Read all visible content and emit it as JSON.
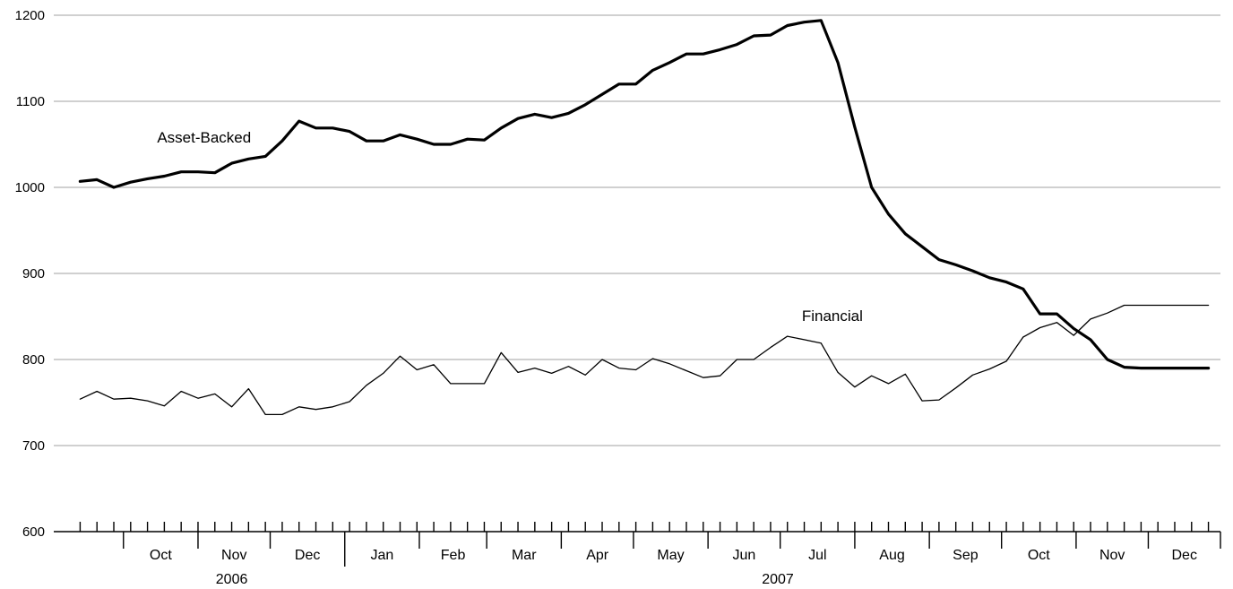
{
  "chart_data": {
    "type": "line",
    "ylim": [
      600,
      1200
    ],
    "yticks": [
      600,
      700,
      800,
      900,
      1000,
      1100,
      1200
    ],
    "grid": "horizontal",
    "x_start": "2006-09-08",
    "x_end": "2007-12-31",
    "month_labels": [
      {
        "label": "Oct",
        "start": "2006-10-01",
        "end": "2006-11-01"
      },
      {
        "label": "Nov",
        "start": "2006-11-01",
        "end": "2006-12-01"
      },
      {
        "label": "Dec",
        "start": "2006-12-01",
        "end": "2007-01-01"
      },
      {
        "label": "Jan",
        "start": "2007-01-01",
        "end": "2007-02-01"
      },
      {
        "label": "Feb",
        "start": "2007-02-01",
        "end": "2007-03-01"
      },
      {
        "label": "Mar",
        "start": "2007-03-01",
        "end": "2007-04-01"
      },
      {
        "label": "Apr",
        "start": "2007-04-01",
        "end": "2007-05-01"
      },
      {
        "label": "May",
        "start": "2007-05-01",
        "end": "2007-06-01"
      },
      {
        "label": "Jun",
        "start": "2007-06-01",
        "end": "2007-07-01"
      },
      {
        "label": "Jul",
        "start": "2007-07-01",
        "end": "2007-08-01"
      },
      {
        "label": "Aug",
        "start": "2007-08-01",
        "end": "2007-09-01"
      },
      {
        "label": "Sep",
        "start": "2007-09-01",
        "end": "2007-10-01"
      },
      {
        "label": "Oct",
        "start": "2007-10-01",
        "end": "2007-11-01"
      },
      {
        "label": "Nov",
        "start": "2007-11-01",
        "end": "2007-12-01"
      },
      {
        "label": "Dec",
        "start": "2007-12-01",
        "end": "2007-12-31"
      }
    ],
    "year_labels": [
      {
        "label": "2006",
        "center": "2006-11-15"
      },
      {
        "label": "2007",
        "center": "2007-06-30"
      }
    ],
    "x": [
      "2006-09-13",
      "2006-09-20",
      "2006-09-27",
      "2006-10-04",
      "2006-10-11",
      "2006-10-18",
      "2006-10-25",
      "2006-11-01",
      "2006-11-08",
      "2006-11-15",
      "2006-11-22",
      "2006-11-29",
      "2006-12-06",
      "2006-12-13",
      "2006-12-20",
      "2006-12-27",
      "2007-01-03",
      "2007-01-10",
      "2007-01-17",
      "2007-01-24",
      "2007-01-31",
      "2007-02-07",
      "2007-02-14",
      "2007-02-21",
      "2007-02-28",
      "2007-03-07",
      "2007-03-14",
      "2007-03-21",
      "2007-03-28",
      "2007-04-04",
      "2007-04-11",
      "2007-04-18",
      "2007-04-25",
      "2007-05-02",
      "2007-05-09",
      "2007-05-16",
      "2007-05-23",
      "2007-05-30",
      "2007-06-06",
      "2007-06-13",
      "2007-06-20",
      "2007-06-27",
      "2007-07-04",
      "2007-07-11",
      "2007-07-18",
      "2007-07-25",
      "2007-08-01",
      "2007-08-08",
      "2007-08-15",
      "2007-08-22",
      "2007-08-29",
      "2007-09-05",
      "2007-09-12",
      "2007-09-19",
      "2007-09-26",
      "2007-10-03",
      "2007-10-10",
      "2007-10-17",
      "2007-10-24",
      "2007-10-31",
      "2007-11-07",
      "2007-11-14",
      "2007-11-21",
      "2007-11-28",
      "2007-12-05",
      "2007-12-12",
      "2007-12-19",
      "2007-12-26"
    ],
    "series": [
      {
        "name": "Asset-Backed",
        "label_at": {
          "x": "2006-10-15",
          "y": 1052
        },
        "values": [
          1007,
          1009,
          1000,
          1006,
          1010,
          1013,
          1018,
          1018,
          1017,
          1028,
          1033,
          1036,
          1054,
          1077,
          1069,
          1069,
          1065,
          1054,
          1054,
          1061,
          1056,
          1050,
          1050,
          1056,
          1055,
          1069,
          1080,
          1085,
          1081,
          1086,
          1096,
          1108,
          1120,
          1120,
          1136,
          1145,
          1155,
          1155,
          1160,
          1166,
          1176,
          1177,
          1188,
          1192,
          1194,
          1145,
          1070,
          1000,
          969,
          946,
          931,
          916,
          910,
          903,
          895,
          890,
          882,
          853,
          853,
          836,
          823,
          800,
          791,
          790,
          790,
          790,
          790,
          790
        ]
      },
      {
        "name": "Financial",
        "label_at": {
          "x": "2007-07-10",
          "y": 845
        },
        "values": [
          754,
          763,
          754,
          755,
          752,
          746,
          763,
          755,
          760,
          745,
          766,
          736,
          736,
          745,
          742,
          745,
          751,
          770,
          784,
          804,
          788,
          794,
          772,
          772,
          772,
          808,
          785,
          790,
          784,
          792,
          782,
          800,
          790,
          788,
          801,
          795,
          787,
          779,
          781,
          800,
          800,
          814,
          827,
          823,
          819,
          785,
          768,
          781,
          772,
          783,
          752,
          753,
          767,
          782,
          789,
          798,
          826,
          837,
          843,
          828,
          847,
          854,
          863,
          863,
          863,
          863,
          863,
          863
        ]
      }
    ]
  }
}
